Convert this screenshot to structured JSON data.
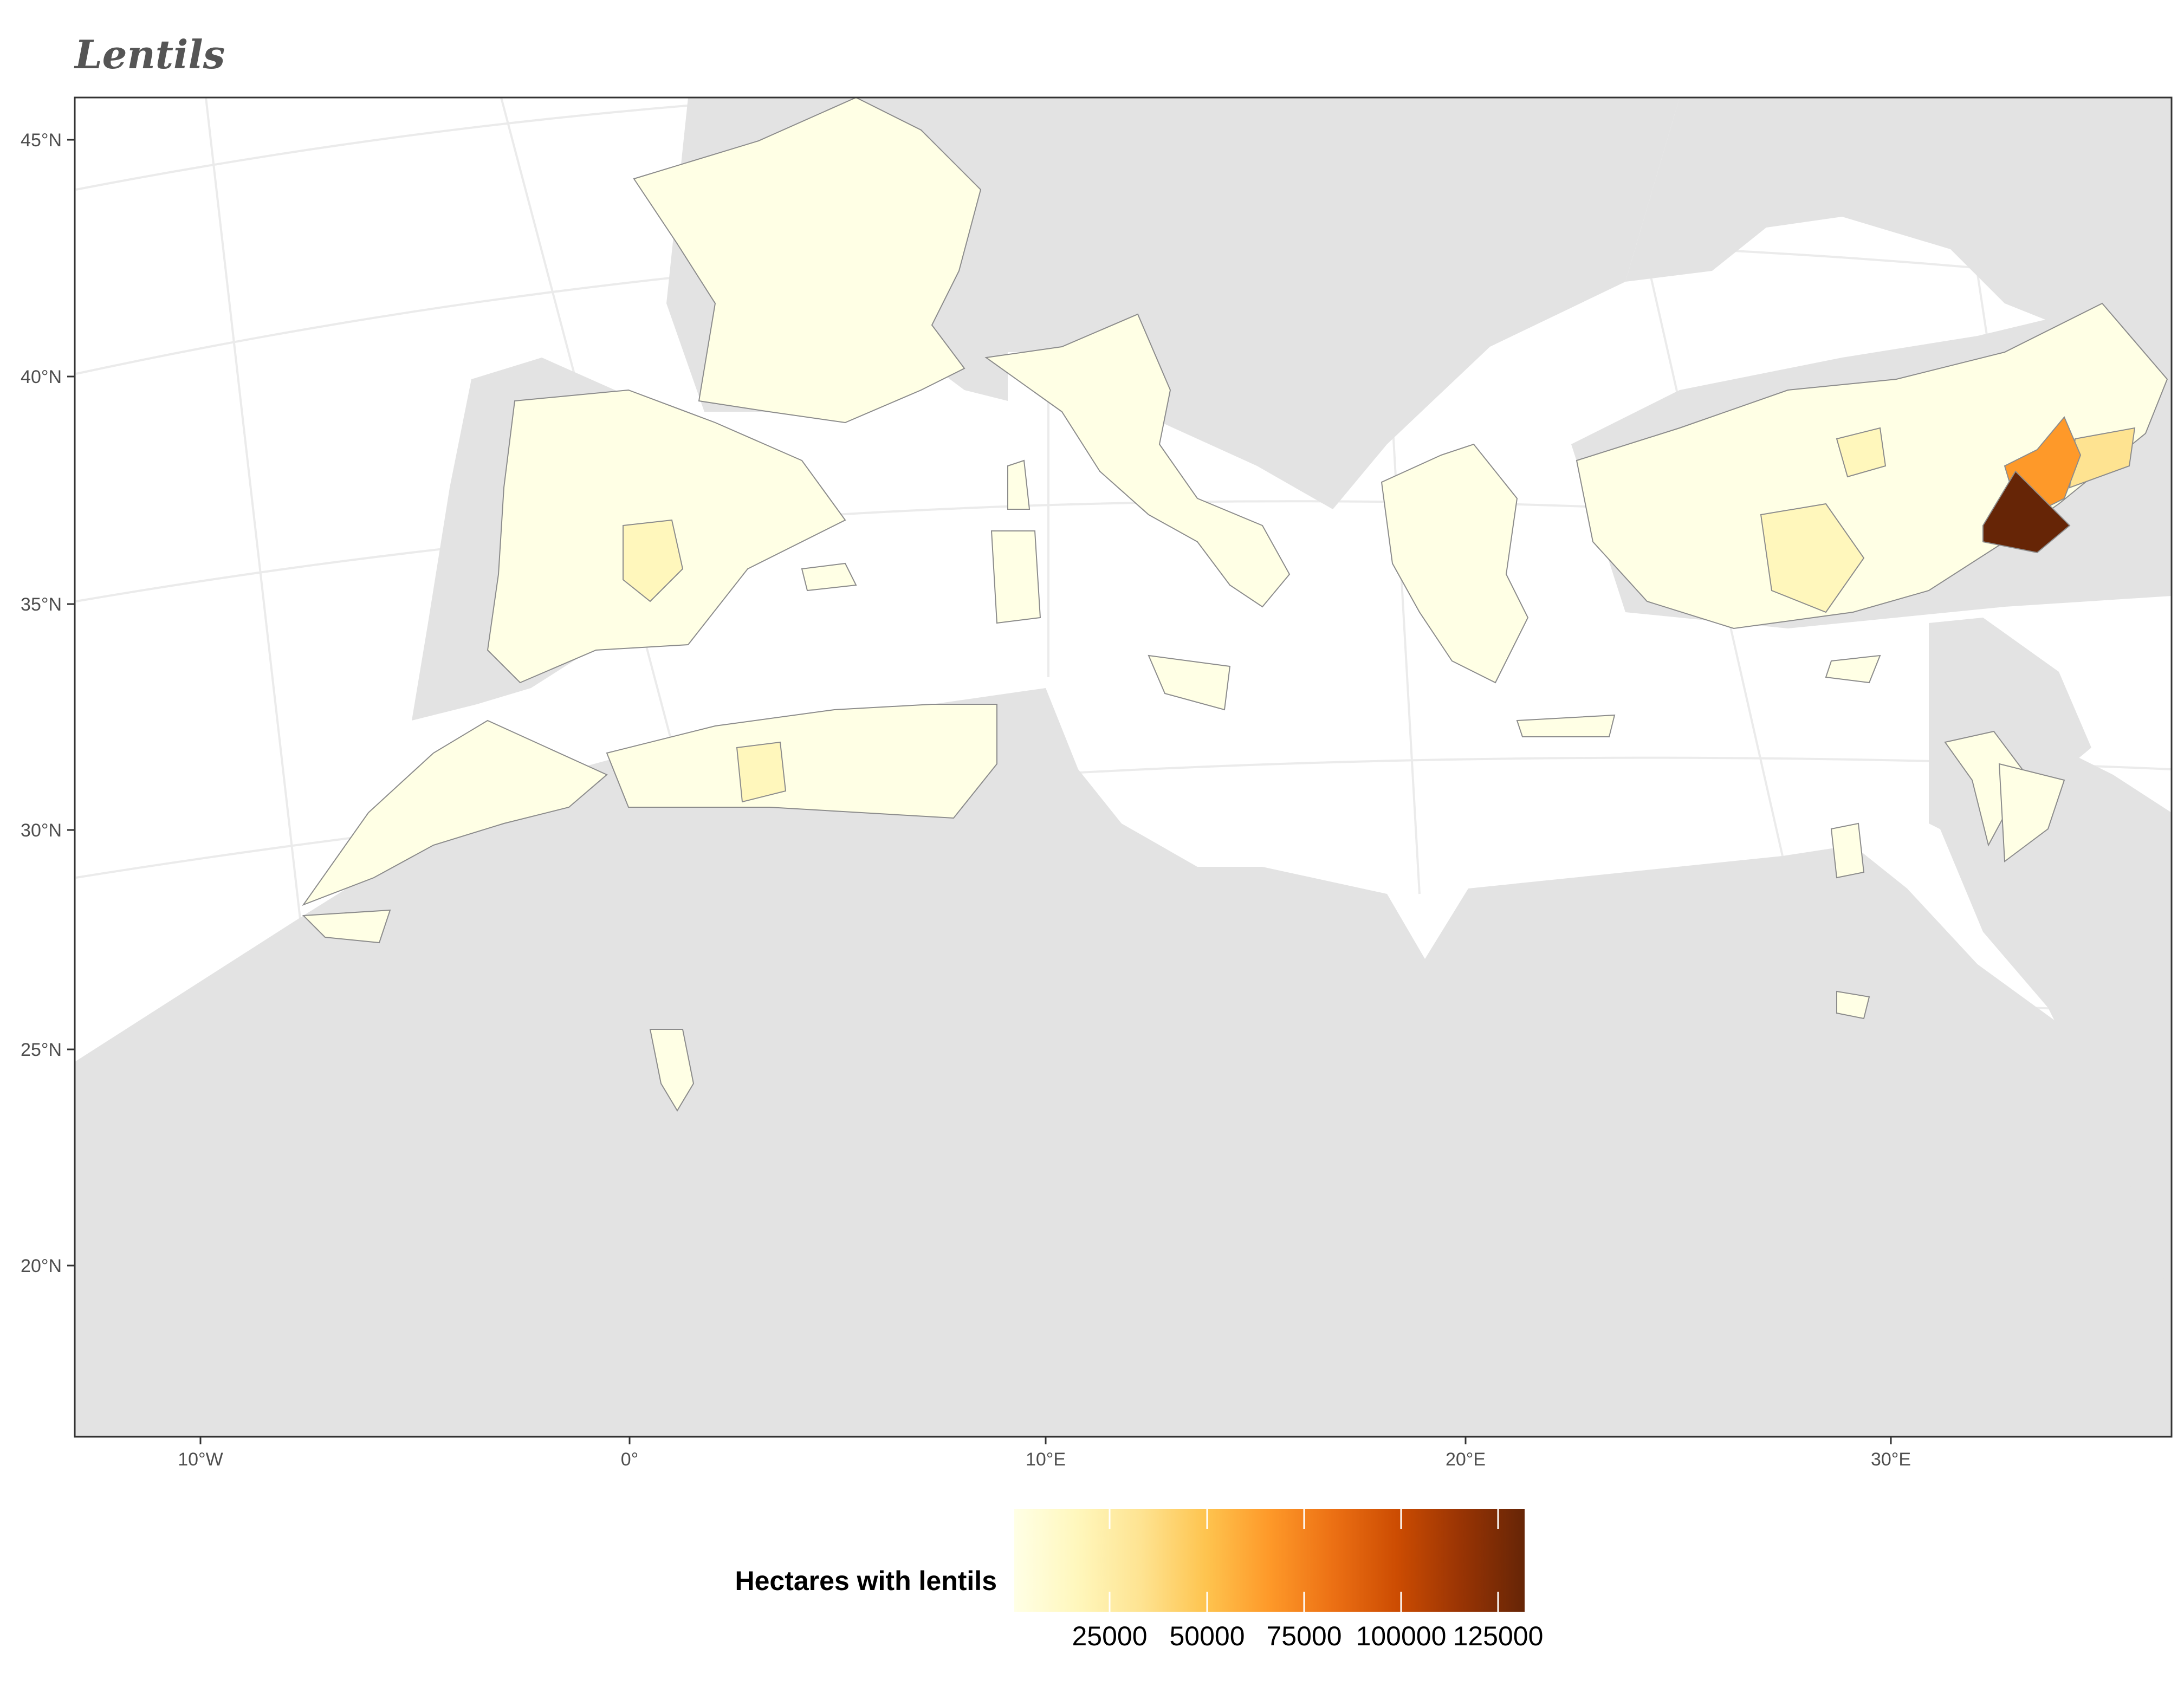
{
  "title": "Lentils",
  "axes": {
    "x_ticks": [
      "10°W",
      "0°",
      "10°E",
      "20°E",
      "30°E"
    ],
    "y_ticks": [
      "45°N",
      "40°N",
      "35°N",
      "30°N",
      "25°N",
      "20°N"
    ]
  },
  "legend": {
    "title": "Hectares with lentils",
    "ticks": [
      "25000",
      "50000",
      "75000",
      "100000",
      "125000"
    ],
    "range": [
      0,
      135000
    ],
    "colors": [
      "#ffffe5",
      "#fff7bc",
      "#fee391",
      "#fec44f",
      "#fe9929",
      "#ec7014",
      "#cc4c02",
      "#993404",
      "#662506"
    ]
  },
  "colors": {
    "land": "#e3e3e3",
    "sea": "#ffffff",
    "graticule": "#ebebeb",
    "panel_border": "#333333",
    "region_border": "#8c8c8c"
  },
  "highlights": [
    {
      "area": "southeast-anatolia-1",
      "hectares": 130000
    },
    {
      "area": "southeast-anatolia-2",
      "hectares": 70000
    },
    {
      "area": "southeast-anatolia-3",
      "hectares": 15000
    },
    {
      "area": "central-anatolia",
      "hectares": 15000
    },
    {
      "area": "central-spain",
      "hectares": 12000
    },
    {
      "area": "algeria",
      "hectares": 6000
    }
  ]
}
